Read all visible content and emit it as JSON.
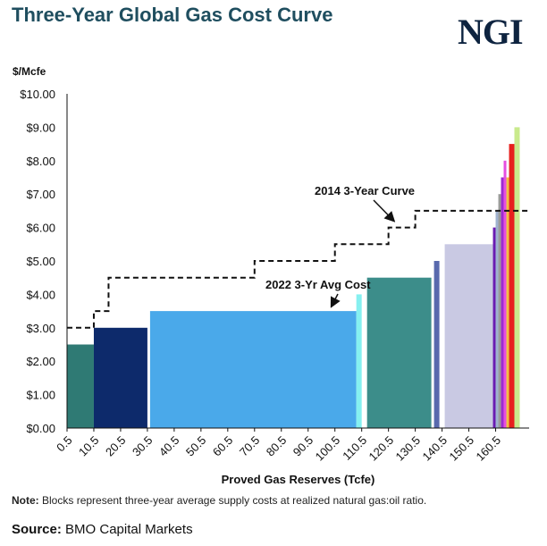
{
  "title": "Three-Year Global Gas Cost Curve",
  "logo": "NGI",
  "note_label": "Note:",
  "note_text": "Blocks represent three-year average supply costs at realized natural gas:oil ratio.",
  "source_label": "Source:",
  "source_text": "BMO Capital Markets",
  "chart_data": {
    "type": "bar",
    "title": "Three-Year Global Gas Cost Curve",
    "ylabel": "$/Mcfe",
    "xlabel": "Proved Gas Reserves (Tcfe)",
    "ylim": [
      0,
      10
    ],
    "xlim": [
      0.5,
      173
    ],
    "y_ticks": [
      "$0.00",
      "$1.00",
      "$2.00",
      "$3.00",
      "$4.00",
      "$5.00",
      "$6.00",
      "$7.00",
      "$8.00",
      "$9.00",
      "$10.00"
    ],
    "x_ticks": [
      "0.5",
      "10.5",
      "20.5",
      "30.5",
      "40.5",
      "50.5",
      "60.5",
      "70.5",
      "80.5",
      "90.5",
      "100.5",
      "110.5",
      "120.5",
      "130.5",
      "140.5",
      "150.5",
      "160.5"
    ],
    "grid": false,
    "blocks": [
      {
        "x0": 0.5,
        "x1": 10.5,
        "value": 2.5,
        "color": "#2f7a74"
      },
      {
        "x0": 10.5,
        "x1": 30.5,
        "value": 3.0,
        "color": "#0d2a6b"
      },
      {
        "x0": 31.5,
        "x1": 108.5,
        "value": 3.5,
        "color": "#4aa9ea"
      },
      {
        "x0": 108.5,
        "x1": 110.5,
        "value": 4.0,
        "color": "#86f0f0"
      },
      {
        "x0": 112.5,
        "x1": 136.5,
        "value": 4.5,
        "color": "#3c8d8a"
      },
      {
        "x0": 137.5,
        "x1": 139.5,
        "value": 5.0,
        "color": "#5969ad"
      },
      {
        "x0": 141.5,
        "x1": 159.5,
        "value": 5.5,
        "color": "#c9c9e3"
      },
      {
        "x0": 159.5,
        "x1": 160.5,
        "value": 6.0,
        "color": "#6a1bb2"
      },
      {
        "x0": 160.5,
        "x1": 161.5,
        "value": 6.5,
        "color": "#9fb2cf"
      },
      {
        "x0": 161.5,
        "x1": 162.5,
        "value": 7.0,
        "color": "#9a9a9a"
      },
      {
        "x0": 162.5,
        "x1": 163.5,
        "value": 7.5,
        "color": "#9c2bd1"
      },
      {
        "x0": 163.5,
        "x1": 164.5,
        "value": 8.0,
        "color": "#e54ee0"
      },
      {
        "x0": 164.5,
        "x1": 165.5,
        "value": 7.5,
        "color": "#f1c043"
      },
      {
        "x0": 165.5,
        "x1": 167.5,
        "value": 8.5,
        "color": "#e7201d"
      },
      {
        "x0": 167.5,
        "x1": 169.5,
        "value": 9.0,
        "color": "#c9ea8c"
      }
    ],
    "series": [
      {
        "name": "2014 3-Year Curve",
        "style": "dashed",
        "color": "#111111",
        "x": [
          0.5,
          10.5,
          10.5,
          16,
          16,
          31,
          31,
          70.5,
          70.5,
          100.5,
          100.5,
          120.5,
          120.5,
          130.5,
          130.5,
          173
        ],
        "y": [
          3.0,
          3.0,
          3.5,
          3.5,
          4.5,
          4.5,
          4.5,
          4.5,
          5.0,
          5.0,
          5.5,
          5.5,
          6.0,
          6.0,
          6.5,
          6.5
        ]
      }
    ],
    "annotations": [
      {
        "text": "2014 3-Year Curve",
        "target_x": 123,
        "target_y": 6.0
      },
      {
        "text": "2022 3-Yr Avg Cost",
        "target_x": 100,
        "target_y": 3.5
      }
    ]
  }
}
